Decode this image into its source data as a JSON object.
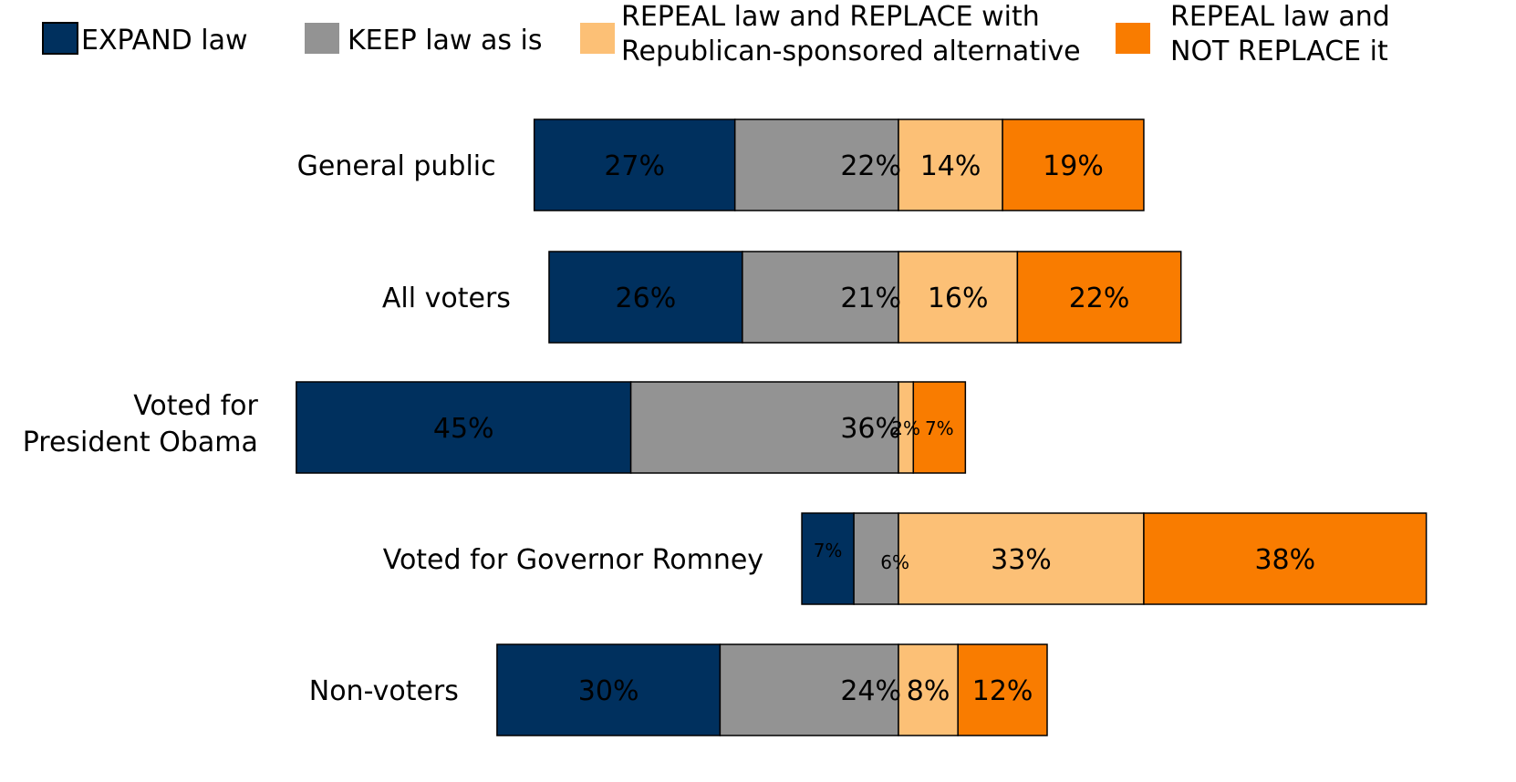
{
  "chart_data": {
    "type": "bar",
    "orientation": "horizontal",
    "layout": "diverging-stacked",
    "legend_position": "top",
    "categories": [
      "General public",
      "All voters",
      "Voted for\nPresident Obama",
      "Voted for Governor Romney",
      "Non-voters"
    ],
    "series": [
      {
        "name": "EXPAND law",
        "color": "#00305e",
        "values": [
          27,
          26,
          45,
          7,
          30
        ]
      },
      {
        "name": "KEEP law as is",
        "color": "#939393",
        "values": [
          22,
          21,
          36,
          6,
          24
        ]
      },
      {
        "name": "REPEAL law and REPLACE with\nRepublican-sponsored alternative",
        "color": "#fcc076",
        "values": [
          14,
          16,
          2,
          33,
          8
        ]
      },
      {
        "name": "REPEAL law and\nNOT REPLACE it",
        "color": "#f97c00",
        "values": [
          19,
          22,
          7,
          38,
          12
        ]
      }
    ],
    "data_labels": [
      [
        "27%",
        "22%",
        "14%",
        "19%"
      ],
      [
        "26%",
        "21%",
        "16%",
        "22%"
      ],
      [
        "45%",
        "36%",
        "2%",
        "7%"
      ],
      [
        "7%",
        "6%",
        "33%",
        "38%"
      ],
      [
        "30%",
        "24%",
        "8%",
        "12%"
      ]
    ]
  }
}
